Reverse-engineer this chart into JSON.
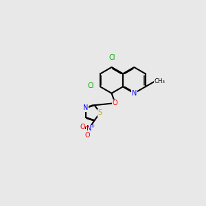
{
  "background_color": "#e8e8e8",
  "atom_colors": {
    "C": "#000000",
    "N": "#0000ff",
    "O": "#ff0000",
    "S": "#ccaa00",
    "Cl": "#00aa00",
    "H": "#000000"
  },
  "bond_color": "#000000",
  "figsize": [
    3.0,
    3.0
  ],
  "dpi": 100
}
